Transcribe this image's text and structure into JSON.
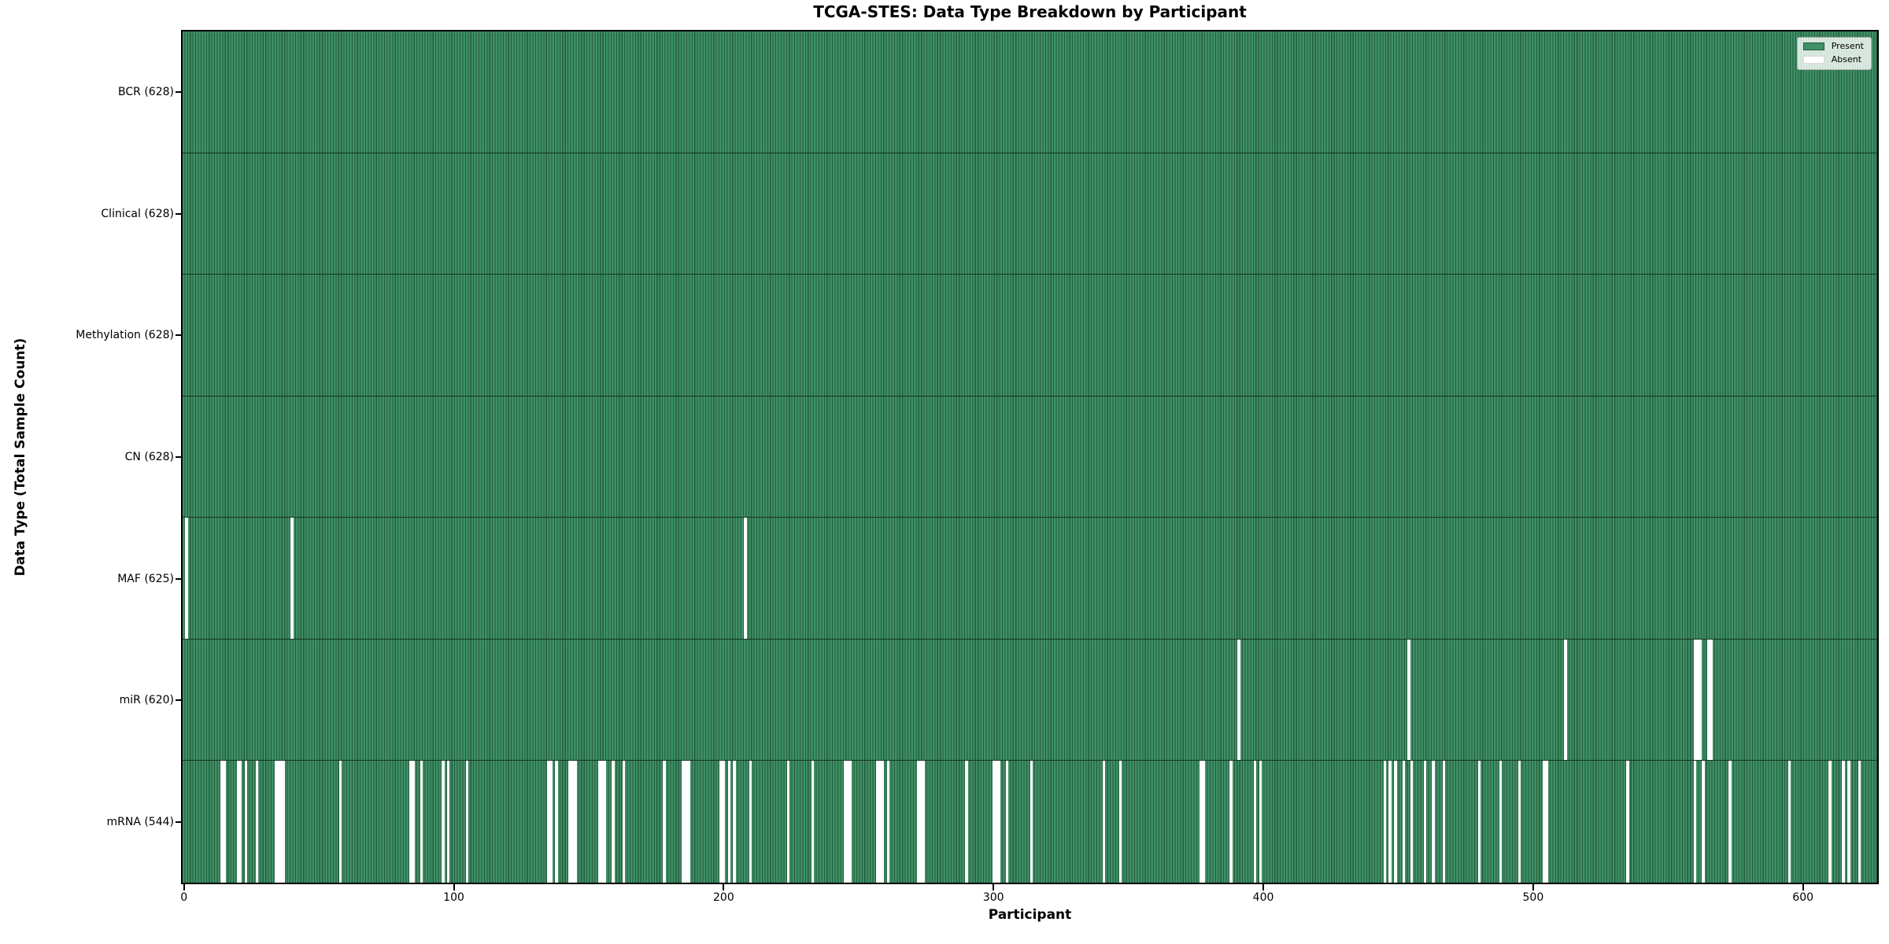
{
  "title": "TCGA-STES: Data Type Breakdown by Participant",
  "colors": {
    "present_face": "#3f9066",
    "present_edge": "#235c3c",
    "absent": "#ffffff",
    "row_divider": "#16351f",
    "axis": "#000000",
    "legend_border": "#b0b0b0"
  },
  "legend": {
    "present_label": "Present",
    "absent_label": "Absent"
  },
  "chart_data": {
    "type": "heatmap",
    "title": "TCGA-STES: Data Type Breakdown by Participant",
    "xlabel": "Participant",
    "ylabel": "Data Type (Total Sample Count)",
    "legend_entries": [
      "Present",
      "Absent"
    ],
    "legend_position": "upper right",
    "grid": false,
    "n_participants": 628,
    "x_range": [
      0,
      627
    ],
    "x_ticks": [
      0,
      100,
      200,
      300,
      400,
      500,
      600
    ],
    "rows": [
      {
        "name": "BCR",
        "label": "BCR (628)",
        "present_count": 628,
        "absent_participants": []
      },
      {
        "name": "Clinical",
        "label": "Clinical (628)",
        "present_count": 628,
        "absent_participants": []
      },
      {
        "name": "Methylation",
        "label": "Methylation (628)",
        "present_count": 628,
        "absent_participants": []
      },
      {
        "name": "CN",
        "label": "CN (628)",
        "present_count": 628,
        "absent_participants": []
      },
      {
        "name": "MAF",
        "label": "MAF (625)",
        "present_count": 625,
        "absent_participants": [
          1,
          40,
          208
        ]
      },
      {
        "name": "miR",
        "label": "miR (620)",
        "present_count": 620,
        "absent_participants": [
          391,
          454,
          512,
          560,
          561,
          562,
          565,
          566
        ]
      },
      {
        "name": "mRNA",
        "label": "mRNA (544)",
        "present_count": 544,
        "absent_participants": [
          14,
          15,
          20,
          21,
          23,
          27,
          34,
          35,
          36,
          37,
          58,
          84,
          85,
          88,
          96,
          98,
          105,
          135,
          136,
          138,
          143,
          144,
          145,
          154,
          155,
          156,
          159,
          163,
          178,
          185,
          186,
          187,
          199,
          200,
          202,
          204,
          210,
          224,
          233,
          245,
          246,
          247,
          257,
          258,
          259,
          261,
          272,
          273,
          274,
          290,
          300,
          301,
          302,
          305,
          314,
          341,
          347,
          377,
          378,
          388,
          397,
          399,
          445,
          447,
          449,
          452,
          455,
          460,
          463,
          467,
          480,
          488,
          495,
          504,
          505,
          535,
          560,
          563,
          573,
          595,
          610,
          615,
          617,
          621
        ]
      }
    ]
  }
}
